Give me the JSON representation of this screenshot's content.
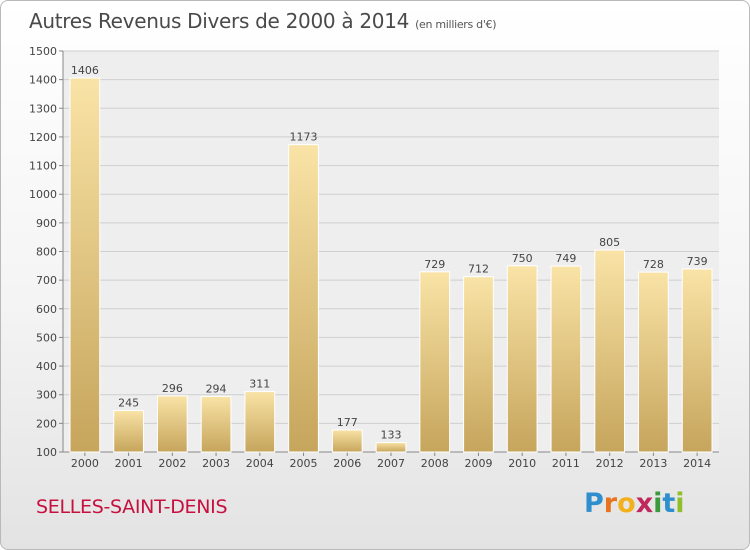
{
  "header": {
    "title": "Autres Revenus Divers de 2000 à 2014",
    "unit": "(en milliers d'€)"
  },
  "footer": {
    "place": "SELLES-SAINT-DENIS",
    "logo_letters": [
      "P",
      "r",
      "o",
      "x",
      "i",
      "t",
      "i"
    ],
    "logo_colors": [
      "#2f8fce",
      "#e8731f",
      "#f2b01e",
      "#c0275d",
      "#3a9a3e",
      "#2f8fce",
      "#8fbf2a"
    ]
  },
  "chart_data": {
    "type": "bar",
    "categories": [
      "2000",
      "2001",
      "2002",
      "2003",
      "2004",
      "2005",
      "2006",
      "2007",
      "2008",
      "2009",
      "2010",
      "2011",
      "2012",
      "2013",
      "2014"
    ],
    "values": [
      1406,
      245,
      296,
      294,
      311,
      1173,
      177,
      133,
      729,
      712,
      750,
      749,
      805,
      728,
      739
    ],
    "data_labels": [
      "1406",
      "245",
      "296",
      "294",
      "311",
      "1173",
      "177",
      "133",
      "729",
      "712",
      "750",
      "749",
      "805",
      "728",
      "739"
    ],
    "ylim": [
      100,
      1500
    ],
    "yticks": [
      "100",
      "200",
      "300",
      "400",
      "500",
      "600",
      "700",
      "800",
      "900",
      "1000",
      "1100",
      "1200",
      "1300",
      "1400",
      "1500"
    ],
    "grid": true,
    "colors": {
      "bar_light": "#f7e0a0",
      "bar_dark": "#c9a860",
      "grid": "#cfcfcf",
      "plot_bg": "#eeeeee"
    }
  }
}
